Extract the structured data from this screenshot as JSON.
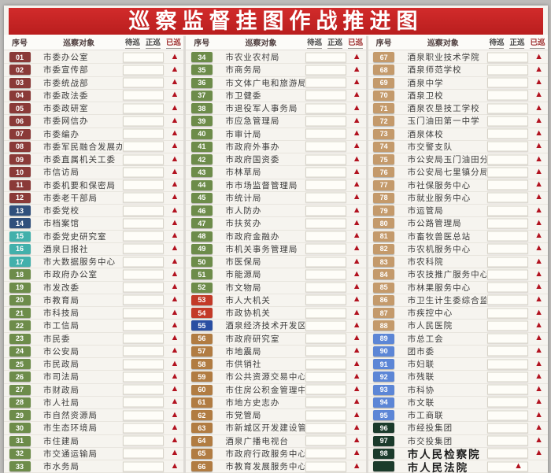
{
  "title": "巡察监督挂图作战推进图",
  "columns": {
    "index": "序号",
    "target": "巡察对象",
    "pending": "待巡",
    "active": "正巡",
    "done": "已巡"
  },
  "marker": "▲",
  "palette": {
    "maroon": "#8a3a38",
    "navy": "#30507c",
    "teal": "#42b0ab",
    "olive": "#6d8c4a",
    "red": "#c33a28",
    "blue": "#2a4fa2",
    "ochre": "#b17c42",
    "tan": "#c49a6b",
    "skyblue": "#5c86d6",
    "darkgreen": "#1b3b2b"
  },
  "marker_color": "#b2121f",
  "title_color": "#c42424",
  "groups": [
    {
      "rows": [
        {
          "n": "01",
          "t": "市委办公室",
          "c": "maroon",
          "s": "done"
        },
        {
          "n": "02",
          "t": "市委宣传部",
          "c": "maroon",
          "s": "done"
        },
        {
          "n": "03",
          "t": "市委统战部",
          "c": "maroon",
          "s": "done"
        },
        {
          "n": "04",
          "t": "市委政法委",
          "c": "maroon",
          "s": "done"
        },
        {
          "n": "05",
          "t": "市委政研室",
          "c": "maroon",
          "s": "done"
        },
        {
          "n": "06",
          "t": "市委网信办",
          "c": "maroon",
          "s": "done"
        },
        {
          "n": "07",
          "t": "市委编办",
          "c": "maroon",
          "s": "done"
        },
        {
          "n": "08",
          "t": "市委军民融合发展办",
          "c": "maroon",
          "s": "done"
        },
        {
          "n": "09",
          "t": "市委直属机关工委",
          "c": "maroon",
          "s": "done"
        },
        {
          "n": "10",
          "t": "市信访局",
          "c": "maroon",
          "s": "done"
        },
        {
          "n": "11",
          "t": "市委机要和保密局",
          "c": "maroon",
          "s": "done"
        },
        {
          "n": "12",
          "t": "市委老干部局",
          "c": "maroon",
          "s": "done"
        },
        {
          "n": "13",
          "t": "市委党校",
          "c": "navy",
          "s": "done"
        },
        {
          "n": "14",
          "t": "市档案馆",
          "c": "navy",
          "s": "done"
        },
        {
          "n": "15",
          "t": "市委党史研究室",
          "c": "teal",
          "s": "done"
        },
        {
          "n": "16",
          "t": "酒泉日报社",
          "c": "teal",
          "s": "done"
        },
        {
          "n": "17",
          "t": "市大数据服务中心",
          "c": "teal",
          "s": "done"
        },
        {
          "n": "18",
          "t": "市政府办公室",
          "c": "olive",
          "s": "done"
        },
        {
          "n": "19",
          "t": "市发改委",
          "c": "olive",
          "s": "done"
        },
        {
          "n": "20",
          "t": "市教育局",
          "c": "olive",
          "s": "done"
        },
        {
          "n": "21",
          "t": "市科技局",
          "c": "olive",
          "s": "done"
        },
        {
          "n": "22",
          "t": "市工信局",
          "c": "olive",
          "s": "done"
        },
        {
          "n": "23",
          "t": "市民委",
          "c": "olive",
          "s": "done"
        },
        {
          "n": "24",
          "t": "市公安局",
          "c": "olive",
          "s": "done"
        },
        {
          "n": "25",
          "t": "市民政局",
          "c": "olive",
          "s": "done"
        },
        {
          "n": "26",
          "t": "市司法局",
          "c": "olive",
          "s": "done"
        },
        {
          "n": "27",
          "t": "市财政局",
          "c": "olive",
          "s": "done"
        },
        {
          "n": "28",
          "t": "市人社局",
          "c": "olive",
          "s": "done"
        },
        {
          "n": "29",
          "t": "市自然资源局",
          "c": "olive",
          "s": "done"
        },
        {
          "n": "30",
          "t": "市生态环境局",
          "c": "olive",
          "s": "done"
        },
        {
          "n": "31",
          "t": "市住建局",
          "c": "olive",
          "s": "done"
        },
        {
          "n": "32",
          "t": "市交通运输局",
          "c": "olive",
          "s": "done"
        },
        {
          "n": "33",
          "t": "市水务局",
          "c": "olive",
          "s": "done"
        }
      ]
    },
    {
      "rows": [
        {
          "n": "34",
          "t": "市农业农村局",
          "c": "olive",
          "s": "done"
        },
        {
          "n": "35",
          "t": "市商务局",
          "c": "olive",
          "s": "done"
        },
        {
          "n": "36",
          "t": "市文体广电和旅游局",
          "c": "olive",
          "s": "done"
        },
        {
          "n": "37",
          "t": "市卫健委",
          "c": "olive",
          "s": "done"
        },
        {
          "n": "38",
          "t": "市退役军人事务局",
          "c": "olive",
          "s": "done"
        },
        {
          "n": "39",
          "t": "市应急管理局",
          "c": "olive",
          "s": "done"
        },
        {
          "n": "40",
          "t": "市审计局",
          "c": "olive",
          "s": "done"
        },
        {
          "n": "41",
          "t": "市政府外事办",
          "c": "olive",
          "s": "done"
        },
        {
          "n": "42",
          "t": "市政府国资委",
          "c": "olive",
          "s": "done"
        },
        {
          "n": "43",
          "t": "市林草局",
          "c": "olive",
          "s": "done"
        },
        {
          "n": "44",
          "t": "市市场监督管理局",
          "c": "olive",
          "s": "done"
        },
        {
          "n": "45",
          "t": "市统计局",
          "c": "olive",
          "s": "done"
        },
        {
          "n": "46",
          "t": "市人防办",
          "c": "olive",
          "s": "done"
        },
        {
          "n": "47",
          "t": "市扶贫办",
          "c": "olive",
          "s": "done"
        },
        {
          "n": "48",
          "t": "市政府金融办",
          "c": "olive",
          "s": "done"
        },
        {
          "n": "49",
          "t": "市机关事务管理局",
          "c": "olive",
          "s": "done"
        },
        {
          "n": "50",
          "t": "市医保局",
          "c": "olive",
          "s": "done"
        },
        {
          "n": "51",
          "t": "市能源局",
          "c": "olive",
          "s": "done"
        },
        {
          "n": "52",
          "t": "市文物局",
          "c": "olive",
          "s": "done"
        },
        {
          "n": "53",
          "t": "市人大机关",
          "c": "red",
          "s": "done"
        },
        {
          "n": "54",
          "t": "市政协机关",
          "c": "red",
          "s": "done"
        },
        {
          "n": "55",
          "t": "酒泉经济技术开发区管委会",
          "c": "blue",
          "s": "done"
        },
        {
          "n": "56",
          "t": "市政府研究室",
          "c": "ochre",
          "s": "done"
        },
        {
          "n": "57",
          "t": "市地震局",
          "c": "ochre",
          "s": "done"
        },
        {
          "n": "58",
          "t": "市供销社",
          "c": "ochre",
          "s": "done"
        },
        {
          "n": "59",
          "t": "市公共资源交易中心",
          "c": "ochre",
          "s": "done"
        },
        {
          "n": "60",
          "t": "市住房公积金管理中心",
          "c": "ochre",
          "s": "done"
        },
        {
          "n": "61",
          "t": "市地方史志办",
          "c": "ochre",
          "s": "done"
        },
        {
          "n": "62",
          "t": "市党管局",
          "c": "ochre",
          "s": "done"
        },
        {
          "n": "63",
          "t": "市新城区开发建设管委会",
          "c": "ochre",
          "s": "done"
        },
        {
          "n": "64",
          "t": "酒泉广播电视台",
          "c": "ochre",
          "s": "done"
        },
        {
          "n": "65",
          "t": "市政府行政服务中心",
          "c": "ochre",
          "s": "done"
        },
        {
          "n": "66",
          "t": "市教育发展服务中心",
          "c": "ochre",
          "s": "done"
        }
      ]
    },
    {
      "rows": [
        {
          "n": "67",
          "t": "酒泉职业技术学院",
          "c": "tan",
          "s": "done"
        },
        {
          "n": "68",
          "t": "酒泉师范学校",
          "c": "tan",
          "s": "done"
        },
        {
          "n": "69",
          "t": "酒泉中学",
          "c": "tan",
          "s": "done"
        },
        {
          "n": "70",
          "t": "酒泉卫校",
          "c": "tan",
          "s": "done"
        },
        {
          "n": "71",
          "t": "酒泉农垦技工学校",
          "c": "tan",
          "s": "done"
        },
        {
          "n": "72",
          "t": "玉门油田第一中学",
          "c": "tan",
          "s": "done"
        },
        {
          "n": "73",
          "t": "酒泉体校",
          "c": "tan",
          "s": "done"
        },
        {
          "n": "74",
          "t": "市交警支队",
          "c": "tan",
          "s": "done"
        },
        {
          "n": "75",
          "t": "市公安局玉门油田分局",
          "c": "tan",
          "s": "done"
        },
        {
          "n": "76",
          "t": "市公安局七里镇分局",
          "c": "tan",
          "s": "done"
        },
        {
          "n": "77",
          "t": "市社保服务中心",
          "c": "tan",
          "s": "done"
        },
        {
          "n": "78",
          "t": "市就业服务中心",
          "c": "tan",
          "s": "done"
        },
        {
          "n": "79",
          "t": "市运管局",
          "c": "tan",
          "s": "done"
        },
        {
          "n": "80",
          "t": "市公路管理局",
          "c": "tan",
          "s": "done"
        },
        {
          "n": "81",
          "t": "市畜牧兽医总站",
          "c": "tan",
          "s": "done"
        },
        {
          "n": "82",
          "t": "市农机服务中心",
          "c": "tan",
          "s": "done"
        },
        {
          "n": "83",
          "t": "市农科院",
          "c": "tan",
          "s": "done"
        },
        {
          "n": "84",
          "t": "市农技推广服务中心",
          "c": "tan",
          "s": "done"
        },
        {
          "n": "85",
          "t": "市林果服务中心",
          "c": "tan",
          "s": "done"
        },
        {
          "n": "86",
          "t": "市卫生计生委综合监督执法局",
          "c": "tan",
          "s": "done"
        },
        {
          "n": "87",
          "t": "市疾控中心",
          "c": "tan",
          "s": "done"
        },
        {
          "n": "88",
          "t": "市人民医院",
          "c": "tan",
          "s": "done"
        },
        {
          "n": "89",
          "t": "市总工会",
          "c": "skyblue",
          "s": "done"
        },
        {
          "n": "90",
          "t": "团市委",
          "c": "skyblue",
          "s": "done"
        },
        {
          "n": "91",
          "t": "市妇联",
          "c": "skyblue",
          "s": "done"
        },
        {
          "n": "92",
          "t": "市残联",
          "c": "skyblue",
          "s": "done"
        },
        {
          "n": "93",
          "t": "市科协",
          "c": "skyblue",
          "s": "done"
        },
        {
          "n": "94",
          "t": "市文联",
          "c": "skyblue",
          "s": "done"
        },
        {
          "n": "95",
          "t": "市工商联",
          "c": "skyblue",
          "s": "done"
        },
        {
          "n": "96",
          "t": "市经投集团",
          "c": "darkgreen",
          "s": "done"
        },
        {
          "n": "97",
          "t": "市交投集团",
          "c": "darkgreen",
          "s": "done"
        },
        {
          "n": "98",
          "t": "市人民检察院",
          "c": "darkgreen",
          "s": "done",
          "big": true
        },
        {
          "n": "",
          "t": "市人民法院",
          "c": "darkgreen",
          "s": "active",
          "big": true
        },
        {
          "n": "",
          "t": "",
          "c": "darkgreen",
          "s": "done",
          "partial": true
        }
      ]
    }
  ]
}
